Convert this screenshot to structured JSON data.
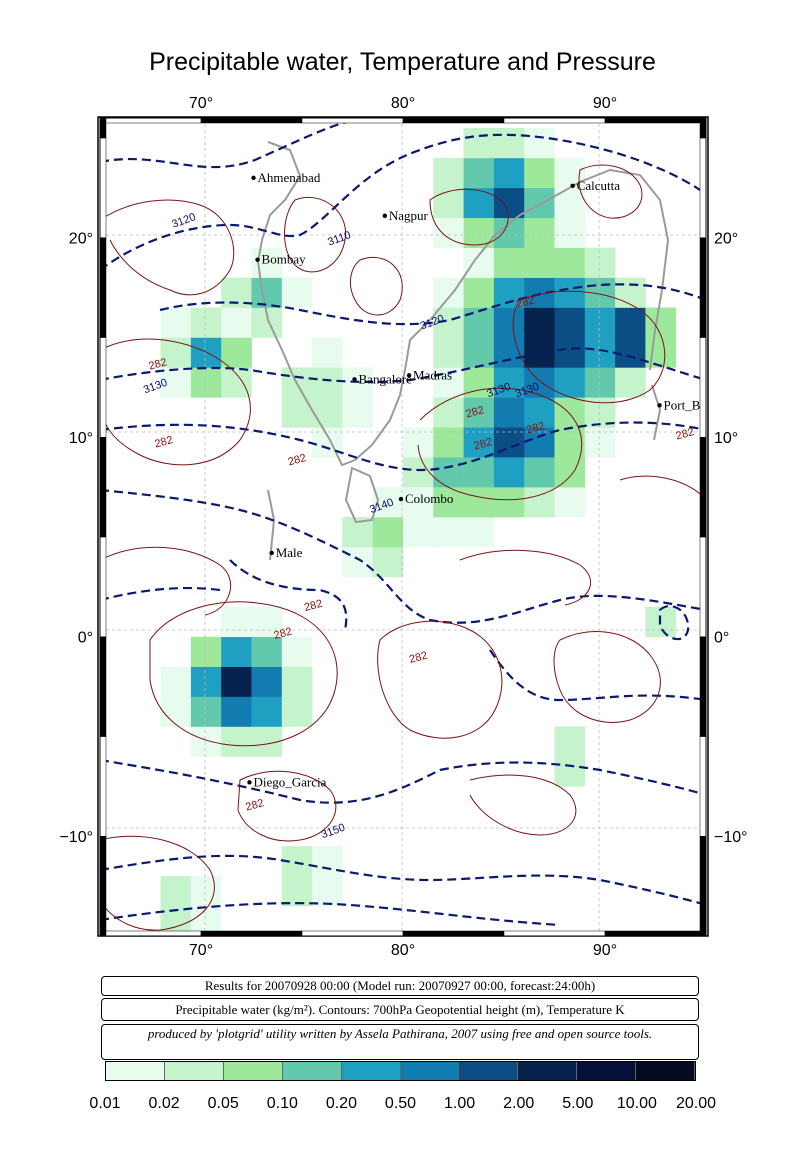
{
  "title": "Precipitable water, Temperature and Pressure",
  "map": {
    "lon_range": [
      65,
      95
    ],
    "lat_range": [
      -15,
      26
    ],
    "lon_ticks": [
      {
        "value": 70,
        "label": "70°"
      },
      {
        "value": 80,
        "label": "80°"
      },
      {
        "value": 90,
        "label": "90°"
      }
    ],
    "lat_ticks": [
      {
        "value": 20,
        "label": "20°"
      },
      {
        "value": 10,
        "label": "10°"
      },
      {
        "value": 0,
        "label": "0°"
      },
      {
        "value": -10,
        "label": "−10°"
      }
    ],
    "cities": [
      {
        "name": "Ahmenabad",
        "lon": 72.6,
        "lat": 23.0
      },
      {
        "name": "Nagpur",
        "lon": 79.1,
        "lat": 21.1
      },
      {
        "name": "Calcutta",
        "lon": 88.4,
        "lat": 22.6
      },
      {
        "name": "Bombay",
        "lon": 72.8,
        "lat": 18.9
      },
      {
        "name": "Bangalore",
        "lon": 77.6,
        "lat": 12.9
      },
      {
        "name": "Madras",
        "lon": 80.3,
        "lat": 13.1
      },
      {
        "name": "Port_B",
        "lon": 92.7,
        "lat": 11.6
      },
      {
        "name": "Colombo",
        "lon": 79.9,
        "lat": 6.9
      },
      {
        "name": "Male",
        "lon": 73.5,
        "lat": 4.2
      },
      {
        "name": "Diego_Garcia",
        "lon": 72.4,
        "lat": -7.3
      }
    ],
    "contour_labels_height": [
      {
        "text": "3120",
        "lon": 69.2,
        "lat": 20.7
      },
      {
        "text": "3110",
        "lon": 76.9,
        "lat": 19.8
      },
      {
        "text": "3120",
        "lon": 81.5,
        "lat": 15.6
      },
      {
        "text": "3130",
        "lon": 67.8,
        "lat": 12.4
      },
      {
        "text": "3130",
        "lon": 84.8,
        "lat": 12.2
      },
      {
        "text": "3130",
        "lon": 86.2,
        "lat": 12.2
      },
      {
        "text": "3140",
        "lon": 79.0,
        "lat": 6.4
      },
      {
        "text": "3150",
        "lon": 76.6,
        "lat": -9.9
      }
    ],
    "contour_labels_temp": [
      {
        "text": "282",
        "lon": 67.9,
        "lat": 13.5
      },
      {
        "text": "282",
        "lon": 86.1,
        "lat": 16.6
      },
      {
        "text": "282",
        "lon": 83.6,
        "lat": 11.1
      },
      {
        "text": "282",
        "lon": 84.0,
        "lat": 9.5
      },
      {
        "text": "282",
        "lon": 86.6,
        "lat": 10.3
      },
      {
        "text": "282",
        "lon": 68.2,
        "lat": 9.6
      },
      {
        "text": "282",
        "lon": 74.8,
        "lat": 8.7
      },
      {
        "text": "282",
        "lon": 94.0,
        "lat": 10.0
      },
      {
        "text": "282",
        "lon": 75.6,
        "lat": 1.4
      },
      {
        "text": "282",
        "lon": 74.1,
        "lat": 0.0
      },
      {
        "text": "282",
        "lon": 80.8,
        "lat": -1.2
      },
      {
        "text": "282",
        "lon": 72.7,
        "lat": -8.6
      }
    ]
  },
  "info": {
    "line1": "Results for 20070928 00:00 (Model run: 20070927 00:00, forecast:24:00h)",
    "line2": "Precipitable water (kg/m²).  Contours: 700hPa Geopotential height (m), Temperature K",
    "line3": "produced by 'plotgrid' utility written by Assela Pathirana, 2007 using free and open source tools."
  },
  "colorbar": {
    "ticks": [
      "0.01",
      "0.02",
      "0.05",
      "0.10",
      "0.20",
      "0.50",
      "1.00",
      "2.00",
      "5.00",
      "10.00",
      "20.00"
    ],
    "colors": [
      "#e8fbef",
      "#c4f3cc",
      "#9ee89c",
      "#63c9ad",
      "#1fa0c2",
      "#127bb0",
      "#0b4e86",
      "#06234d",
      "#06113a",
      "#060a22"
    ]
  }
}
